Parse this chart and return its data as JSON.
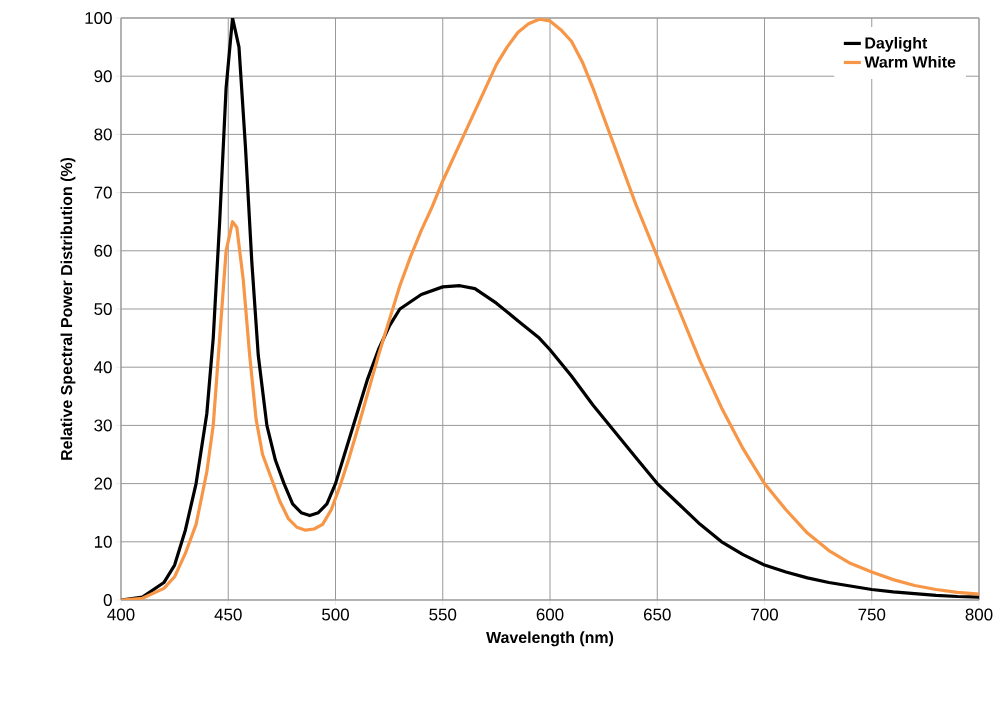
{
  "chart_data": {
    "type": "line",
    "xlabel": "Wavelength (nm)",
    "ylabel": "Relative  Spectral Power Distribution (%)",
    "xlim": [
      400,
      800
    ],
    "xticks": [
      400,
      450,
      500,
      550,
      600,
      650,
      700,
      750,
      800
    ],
    "ylim": [
      0,
      100
    ],
    "yticks": [
      0,
      10,
      20,
      30,
      40,
      50,
      60,
      70,
      80,
      90,
      100
    ],
    "grid": true,
    "legend": "top right",
    "marker": "none",
    "line_style": "solid",
    "series": [
      {
        "name": "Daylight",
        "color": "#000000",
        "x": [
          400,
          410,
          420,
          425,
          430,
          435,
          440,
          443,
          446,
          449,
          452,
          455,
          458,
          461,
          464,
          468,
          472,
          476,
          480,
          484,
          488,
          492,
          496,
          500,
          505,
          510,
          515,
          520,
          525,
          530,
          540,
          550,
          558,
          565,
          575,
          585,
          595,
          600,
          610,
          620,
          630,
          640,
          650,
          660,
          670,
          680,
          690,
          700,
          710,
          720,
          730,
          740,
          750,
          760,
          770,
          780,
          790,
          800
        ],
        "values": [
          0,
          0.5,
          3,
          6,
          12,
          20,
          32,
          45,
          65,
          88,
          100,
          95,
          78,
          58,
          42,
          30,
          24,
          20,
          16.5,
          15,
          14.5,
          15,
          16.5,
          20,
          26,
          32,
          38,
          43,
          47,
          50,
          52.5,
          53.8,
          54,
          53.5,
          51,
          48,
          45,
          43,
          38.5,
          33.5,
          29,
          24.5,
          20,
          16.5,
          13,
          10,
          7.8,
          6,
          4.8,
          3.8,
          3,
          2.4,
          1.8,
          1.4,
          1.1,
          0.8,
          0.6,
          0.5
        ]
      },
      {
        "name": "Warm White",
        "color": "#f79646",
        "x": [
          400,
          410,
          420,
          425,
          430,
          435,
          440,
          443,
          446,
          449,
          452,
          454,
          457,
          460,
          463,
          466,
          470,
          474,
          478,
          482,
          486,
          490,
          494,
          498,
          502,
          506,
          510,
          515,
          520,
          525,
          530,
          535,
          540,
          545,
          550,
          555,
          560,
          565,
          570,
          575,
          580,
          585,
          590,
          595,
          600,
          605,
          610,
          615,
          620,
          625,
          630,
          640,
          650,
          660,
          670,
          680,
          690,
          700,
          710,
          720,
          730,
          740,
          750,
          760,
          770,
          780,
          790,
          800
        ],
        "values": [
          0,
          0.3,
          2,
          4,
          8,
          13,
          22,
          30,
          45,
          60,
          65,
          64,
          55,
          42,
          31,
          25,
          21,
          17,
          14,
          12.5,
          12,
          12.2,
          13,
          15.5,
          19.5,
          24,
          29,
          35.5,
          42,
          48,
          54,
          59,
          63.5,
          67.5,
          72,
          76,
          80,
          84,
          88,
          92,
          95,
          97.5,
          99,
          99.8,
          99.5,
          98,
          96,
          92.5,
          88,
          83,
          78,
          68,
          59,
          50,
          41,
          33,
          26,
          20,
          15.5,
          11.5,
          8.5,
          6.3,
          4.8,
          3.5,
          2.5,
          1.8,
          1.3,
          1
        ]
      }
    ]
  }
}
